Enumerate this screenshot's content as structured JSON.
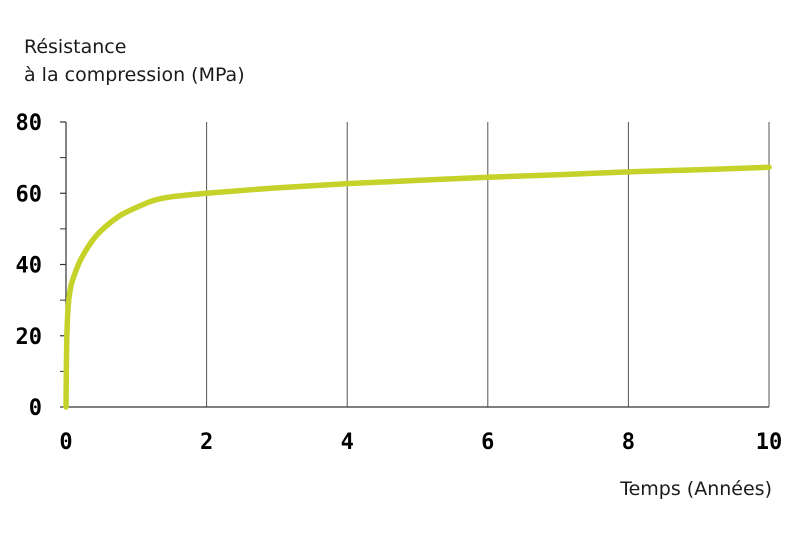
{
  "chart_data": {
    "type": "line",
    "ylabel_lines": [
      "Résistance",
      "à la compression (MPa)"
    ],
    "xlabel": "Temps (Années)",
    "xlim": [
      0,
      10
    ],
    "ylim": [
      0,
      80
    ],
    "x_ticks": [
      0,
      2,
      4,
      6,
      8,
      10
    ],
    "x_tick_labels": [
      "0",
      "2",
      "4",
      "6",
      "8",
      "10"
    ],
    "y_ticks": [
      0,
      20,
      40,
      60,
      80
    ],
    "y_tick_labels": [
      "0",
      "20",
      "40",
      "60",
      "80"
    ],
    "y_minor_ticks": [
      10,
      30,
      50,
      70
    ],
    "grid": "vertical",
    "series": [
      {
        "color": "#c5d22a",
        "x": [
          0,
          0.01,
          0.03,
          0.06,
          0.1,
          0.2,
          0.35,
          0.5,
          0.75,
          1.0,
          1.25,
          1.5,
          2,
          3,
          4,
          5,
          6,
          7,
          8,
          9,
          10
        ],
        "y": [
          0,
          18,
          28,
          33,
          36,
          41,
          46,
          49.5,
          53.5,
          56,
          58,
          59,
          60,
          61.5,
          62.7,
          63.6,
          64.5,
          65.2,
          66,
          66.6,
          67.3
        ]
      }
    ]
  }
}
